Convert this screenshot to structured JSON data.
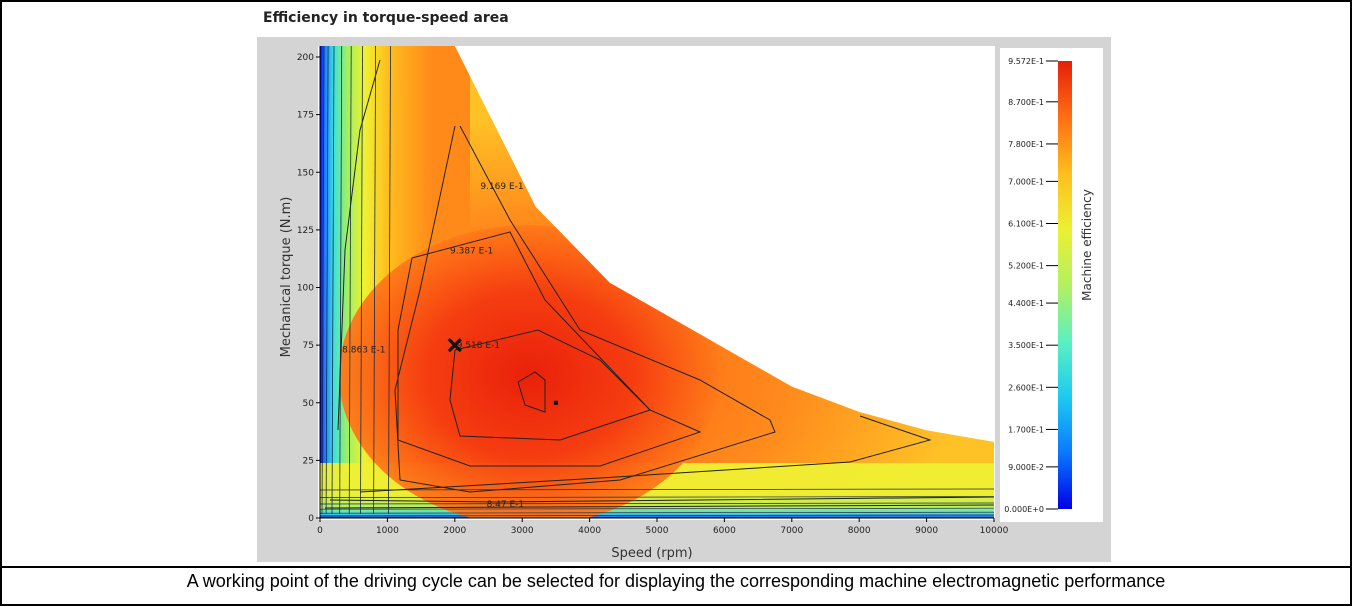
{
  "chart_data": {
    "type": "heatmap",
    "title": "Efficiency in torque-speed area",
    "xlabel": "Speed (rpm)",
    "ylabel": "Mechanical torque (N.m)",
    "xlim": [
      0,
      10000
    ],
    "ylim": [
      0,
      205
    ],
    "x_ticks": [
      "0",
      "1000",
      "2000",
      "3000",
      "4000",
      "5000",
      "6000",
      "7000",
      "8000",
      "9000",
      "10000"
    ],
    "y_ticks": [
      "0",
      "25",
      "50",
      "75",
      "100",
      "125",
      "150",
      "175",
      "200"
    ],
    "colorbar": {
      "label": "Machine efficiency",
      "min": 0.0,
      "max": 0.9572,
      "ticks": [
        "9.572E-1",
        "8.700E-1",
        "7.800E-1",
        "7.000E-1",
        "6.100E-1",
        "5.200E-1",
        "4.400E-1",
        "3.500E-1",
        "2.600E-1",
        "1.700E-1",
        "9.000E-2",
        "0.000E+0"
      ],
      "colors": [
        "#0000e6",
        "#0a78ff",
        "#1ecbf0",
        "#5cf0c0",
        "#b4f060",
        "#ecf032",
        "#ffbe1e",
        "#ff6e14",
        "#e61e0a"
      ]
    },
    "max_torque_envelope": [
      [
        2000,
        205
      ],
      [
        3200,
        135
      ],
      [
        4300,
        102
      ],
      [
        5800,
        77
      ],
      [
        7000,
        57
      ],
      [
        8000,
        46
      ],
      [
        9000,
        38
      ],
      [
        10000,
        33
      ]
    ],
    "contour_labels": [
      {
        "text": "9.169 E-1",
        "x": 2700,
        "y": 144
      },
      {
        "text": "9.387 E-1",
        "x": 2250,
        "y": 116
      },
      {
        "text": "9.518 E-1",
        "x": 2350,
        "y": 75
      },
      {
        "text": "8.863 E-1",
        "x": 650,
        "y": 73
      },
      {
        "text": "8.47 E-1",
        "x": 2750,
        "y": 6
      }
    ],
    "selected_point": {
      "x": 2000,
      "y": 75
    },
    "max_efficiency_point": {
      "x": 3500,
      "y": 50
    }
  },
  "caption": "A working point of the driving cycle can be selected for displaying the corresponding machine electromagnetic performance"
}
